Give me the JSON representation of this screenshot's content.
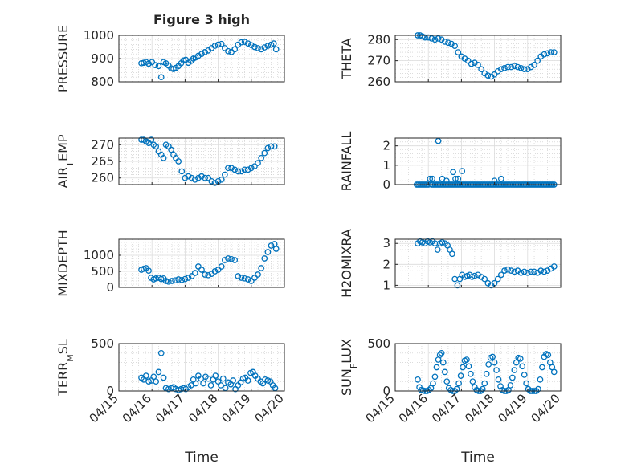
{
  "figure": {
    "title": "Figure 3 high",
    "x_axis_label": "Time",
    "x_tick_labels": [
      "04/15",
      "04/16",
      "04/17",
      "04/18",
      "04/19",
      "04/20"
    ]
  },
  "colors": {
    "marker": "#0072BD",
    "axis": "#262626",
    "grid": "#c8c8c8",
    "background": "#ffffff"
  },
  "chart_data": [
    {
      "type": "scatter",
      "ylabel": "PRESSURE",
      "ylim": [
        800,
        1000
      ],
      "yticks": [
        800,
        900,
        1000
      ],
      "xlim": [
        "04/15",
        "04/20"
      ],
      "x": [
        0.68,
        0.75,
        0.82,
        0.9,
        1.0,
        1.1,
        1.2,
        1.28,
        1.35,
        1.42,
        1.5,
        1.58,
        1.65,
        1.72,
        1.8,
        1.88,
        1.95,
        2.02,
        2.1,
        2.18,
        2.25,
        2.32,
        2.4,
        2.5,
        2.6,
        2.7,
        2.8,
        2.9,
        3.0,
        3.1,
        3.2,
        3.3,
        3.4,
        3.5,
        3.6,
        3.7,
        3.8,
        3.9,
        4.0,
        4.1,
        4.2,
        4.3,
        4.4,
        4.5,
        4.6,
        4.68,
        4.75
      ],
      "values": [
        880,
        882,
        885,
        878,
        885,
        872,
        868,
        820,
        885,
        880,
        870,
        858,
        855,
        860,
        868,
        880,
        892,
        895,
        882,
        890,
        900,
        905,
        912,
        920,
        928,
        935,
        945,
        955,
        960,
        963,
        945,
        932,
        928,
        940,
        960,
        970,
        972,
        965,
        958,
        950,
        945,
        940,
        948,
        955,
        960,
        965,
        940
      ]
    },
    {
      "type": "scatter",
      "ylabel": "THETA",
      "ylim": [
        260,
        282
      ],
      "yticks": [
        260,
        270,
        280
      ],
      "xlim": [
        "04/15",
        "04/20"
      ],
      "x": [
        0.68,
        0.75,
        0.82,
        0.9,
        1.0,
        1.1,
        1.2,
        1.3,
        1.4,
        1.5,
        1.6,
        1.7,
        1.8,
        1.9,
        2.0,
        2.1,
        2.2,
        2.3,
        2.4,
        2.5,
        2.6,
        2.7,
        2.8,
        2.9,
        3.0,
        3.1,
        3.2,
        3.3,
        3.4,
        3.5,
        3.6,
        3.7,
        3.8,
        3.9,
        4.0,
        4.1,
        4.2,
        4.3,
        4.4,
        4.5,
        4.6,
        4.7,
        4.8
      ],
      "values": [
        282,
        282,
        281.5,
        281,
        281,
        280.5,
        280,
        280.5,
        280,
        279,
        278.5,
        278,
        277,
        274,
        272,
        271,
        270,
        268.5,
        269,
        268,
        266,
        264,
        263,
        262.5,
        263.5,
        265,
        266,
        266.5,
        267,
        267,
        267.5,
        267,
        266.5,
        266,
        266,
        267,
        268,
        270,
        272,
        273,
        273.5,
        274,
        274
      ]
    },
    {
      "type": "scatter",
      "ylabel": "AIR",
      "ylabel_subscript": "T",
      "ylabel_suffix": "EMP",
      "ylim": [
        258,
        272
      ],
      "yticks": [
        260,
        265,
        270
      ],
      "xlim": [
        "04/15",
        "04/20"
      ],
      "x": [
        0.68,
        0.75,
        0.82,
        0.9,
        0.98,
        1.05,
        1.12,
        1.2,
        1.28,
        1.35,
        1.42,
        1.5,
        1.58,
        1.65,
        1.72,
        1.8,
        1.9,
        2.0,
        2.1,
        2.2,
        2.3,
        2.4,
        2.5,
        2.6,
        2.7,
        2.8,
        2.9,
        3.0,
        3.1,
        3.2,
        3.3,
        3.4,
        3.5,
        3.6,
        3.7,
        3.8,
        3.9,
        4.0,
        4.1,
        4.2,
        4.3,
        4.4,
        4.5,
        4.6,
        4.7
      ],
      "values": [
        271.5,
        271.5,
        271,
        270.5,
        271.5,
        270,
        269.5,
        268,
        267,
        266,
        270,
        269.5,
        268.5,
        267,
        266,
        265,
        262,
        260,
        260.5,
        260,
        259.5,
        260,
        260.5,
        260,
        260,
        259,
        258.5,
        259,
        259.5,
        261,
        263,
        263,
        262.5,
        262,
        262,
        262.5,
        262.5,
        263,
        263.5,
        264.5,
        266,
        267.5,
        269,
        269.5,
        269.5
      ]
    },
    {
      "type": "scatter",
      "ylabel": "RAINFALL",
      "ylim": [
        0,
        2.4
      ],
      "yticks": [
        0,
        1,
        2
      ],
      "xlim": [
        "04/15",
        "04/20"
      ],
      "x": [
        0.65,
        0.7,
        0.75,
        0.8,
        0.85,
        0.9,
        0.95,
        1.0,
        1.05,
        1.1,
        1.15,
        1.2,
        1.25,
        1.3,
        1.35,
        1.4,
        1.45,
        1.5,
        1.55,
        1.6,
        1.65,
        1.7,
        1.75,
        1.8,
        1.85,
        1.9,
        1.95,
        2.0,
        2.05,
        2.1,
        2.15,
        2.2,
        2.25,
        2.3,
        2.35,
        2.4,
        2.45,
        2.5,
        2.55,
        2.6,
        2.65,
        2.7,
        2.75,
        2.8,
        2.85,
        2.9,
        2.95,
        3.0,
        3.05,
        3.1,
        3.15,
        3.2,
        3.25,
        3.3,
        3.35,
        3.4,
        3.45,
        3.5,
        3.55,
        3.6,
        3.65,
        3.7,
        3.75,
        3.8,
        3.85,
        3.9,
        3.95,
        4.0,
        4.05,
        4.1,
        4.15,
        4.2,
        4.25,
        4.3,
        4.35,
        4.4,
        4.45,
        4.5,
        4.55,
        4.6,
        4.65,
        4.7,
        4.75,
        4.8,
        1.12,
        1.3,
        1.42,
        1.55,
        1.75,
        1.82,
        1.9,
        2.02,
        3.0,
        3.2
      ],
      "values": [
        0,
        0,
        0,
        0,
        0,
        0,
        0,
        0,
        0.3,
        0,
        0,
        0,
        0,
        0,
        0,
        0,
        0,
        0,
        0,
        0,
        0,
        0,
        0,
        0,
        0,
        0,
        0,
        0,
        0,
        0,
        0,
        0,
        0,
        0,
        0,
        0,
        0,
        0,
        0,
        0,
        0,
        0,
        0,
        0,
        0,
        0,
        0,
        0,
        0,
        0,
        0,
        0,
        0,
        0,
        0,
        0,
        0,
        0,
        0,
        0,
        0,
        0,
        0,
        0,
        0,
        0,
        0,
        0,
        0,
        0,
        0,
        0,
        0,
        0,
        0,
        0,
        0,
        0,
        0,
        0,
        0,
        0,
        0,
        0,
        0.3,
        2.25,
        0.3,
        0.2,
        0.65,
        0.3,
        0.3,
        0.7,
        0.2,
        0.3
      ]
    },
    {
      "type": "scatter",
      "ylabel": "MIXDEPTH",
      "ylim": [
        0,
        1500
      ],
      "yticks": [
        0,
        500,
        1000
      ],
      "xlim": [
        "04/15",
        "04/20"
      ],
      "x": [
        0.68,
        0.75,
        0.82,
        0.9,
        0.97,
        1.05,
        1.12,
        1.2,
        1.28,
        1.35,
        1.42,
        1.5,
        1.6,
        1.7,
        1.8,
        1.9,
        2.0,
        2.1,
        2.2,
        2.3,
        2.4,
        2.5,
        2.6,
        2.7,
        2.8,
        2.9,
        3.0,
        3.1,
        3.2,
        3.3,
        3.4,
        3.5,
        3.6,
        3.7,
        3.8,
        3.9,
        4.0,
        4.1,
        4.2,
        4.3,
        4.4,
        4.5,
        4.6,
        4.7,
        4.75
      ],
      "values": [
        550,
        580,
        600,
        520,
        300,
        250,
        280,
        300,
        260,
        280,
        200,
        180,
        200,
        220,
        250,
        230,
        260,
        300,
        350,
        450,
        650,
        550,
        400,
        380,
        420,
        500,
        550,
        650,
        850,
        900,
        880,
        850,
        350,
        300,
        280,
        250,
        200,
        300,
        400,
        600,
        900,
        1100,
        1300,
        1350,
        1200
      ]
    },
    {
      "type": "scatter",
      "ylabel": "H2OMIXRA",
      "ylim": [
        0.9,
        3.2
      ],
      "yticks": [
        1,
        2,
        3
      ],
      "xlim": [
        "04/15",
        "04/20"
      ],
      "x": [
        0.68,
        0.75,
        0.82,
        0.9,
        0.98,
        1.05,
        1.12,
        1.2,
        1.28,
        1.35,
        1.42,
        1.5,
        1.58,
        1.65,
        1.72,
        1.8,
        1.88,
        1.95,
        2.02,
        2.1,
        2.18,
        2.25,
        2.32,
        2.4,
        2.5,
        2.6,
        2.7,
        2.8,
        2.9,
        3.0,
        3.1,
        3.2,
        3.3,
        3.4,
        3.5,
        3.6,
        3.7,
        3.8,
        3.9,
        4.0,
        4.1,
        4.2,
        4.3,
        4.4,
        4.5,
        4.6,
        4.7,
        4.8
      ],
      "values": [
        3.0,
        3.1,
        3.05,
        3.0,
        3.1,
        3.05,
        3.1,
        3.0,
        2.7,
        3.0,
        3.05,
        3.0,
        2.9,
        2.7,
        2.5,
        1.3,
        1.0,
        1.3,
        1.5,
        1.4,
        1.45,
        1.5,
        1.4,
        1.45,
        1.5,
        1.4,
        1.3,
        1.1,
        1.0,
        1.1,
        1.3,
        1.5,
        1.7,
        1.75,
        1.7,
        1.65,
        1.7,
        1.6,
        1.65,
        1.6,
        1.65,
        1.65,
        1.6,
        1.7,
        1.65,
        1.7,
        1.8,
        1.9
      ]
    },
    {
      "type": "scatter",
      "ylabel": "TERR",
      "ylabel_subscript": "M",
      "ylabel_suffix": "SL",
      "ylim": [
        0,
        500
      ],
      "yticks": [
        0,
        500
      ],
      "xlim": [
        "04/15",
        "04/20"
      ],
      "x": [
        0.68,
        0.75,
        0.82,
        0.9,
        0.98,
        1.05,
        1.12,
        1.2,
        1.28,
        1.35,
        1.42,
        1.5,
        1.58,
        1.65,
        1.72,
        1.8,
        1.88,
        1.95,
        2.02,
        2.1,
        2.18,
        2.25,
        2.32,
        2.4,
        2.48,
        2.55,
        2.62,
        2.7,
        2.78,
        2.85,
        2.92,
        3.0,
        3.08,
        3.15,
        3.22,
        3.3,
        3.38,
        3.45,
        3.52,
        3.6,
        3.68,
        3.75,
        3.82,
        3.9,
        3.98,
        4.05,
        4.12,
        4.2,
        4.28,
        4.35,
        4.42,
        4.5,
        4.58,
        4.65,
        4.72
      ],
      "values": [
        140,
        120,
        160,
        100,
        110,
        150,
        100,
        200,
        400,
        140,
        30,
        20,
        30,
        40,
        20,
        10,
        20,
        30,
        20,
        40,
        60,
        120,
        80,
        160,
        130,
        80,
        150,
        130,
        60,
        120,
        160,
        100,
        60,
        130,
        30,
        90,
        70,
        110,
        20,
        60,
        90,
        130,
        140,
        110,
        190,
        200,
        160,
        130,
        100,
        80,
        120,
        110,
        100,
        60,
        30
      ]
    },
    {
      "type": "scatter",
      "ylabel": "SUN",
      "ylabel_subscript": "F",
      "ylabel_suffix": "LUX",
      "ylim": [
        0,
        500
      ],
      "yticks": [
        0,
        500
      ],
      "xlim": [
        "04/15",
        "04/20"
      ],
      "x": [
        0.68,
        0.73,
        0.78,
        0.84,
        0.9,
        0.96,
        1.02,
        1.08,
        1.14,
        1.2,
        1.25,
        1.3,
        1.35,
        1.4,
        1.45,
        1.5,
        1.56,
        1.62,
        1.68,
        1.74,
        1.8,
        1.86,
        1.92,
        1.98,
        2.04,
        2.1,
        2.16,
        2.22,
        2.28,
        2.34,
        2.4,
        2.46,
        2.52,
        2.58,
        2.64,
        2.7,
        2.76,
        2.82,
        2.88,
        2.94,
        3.0,
        3.06,
        3.12,
        3.18,
        3.24,
        3.3,
        3.36,
        3.42,
        3.48,
        3.54,
        3.6,
        3.66,
        3.72,
        3.78,
        3.84,
        3.9,
        3.96,
        4.02,
        4.08,
        4.14,
        4.2,
        4.26,
        4.32,
        4.38,
        4.44,
        4.5,
        4.56,
        4.62,
        4.68,
        4.74,
        4.8
      ],
      "values": [
        120,
        40,
        10,
        5,
        0,
        0,
        10,
        30,
        80,
        150,
        250,
        330,
        380,
        400,
        300,
        200,
        100,
        30,
        10,
        0,
        0,
        20,
        80,
        160,
        250,
        320,
        330,
        260,
        180,
        100,
        40,
        10,
        0,
        0,
        20,
        80,
        180,
        280,
        350,
        360,
        300,
        220,
        120,
        50,
        10,
        0,
        0,
        10,
        60,
        140,
        220,
        300,
        350,
        340,
        260,
        170,
        80,
        20,
        0,
        0,
        0,
        0,
        20,
        120,
        250,
        360,
        390,
        380,
        300,
        250,
        200
      ]
    }
  ]
}
